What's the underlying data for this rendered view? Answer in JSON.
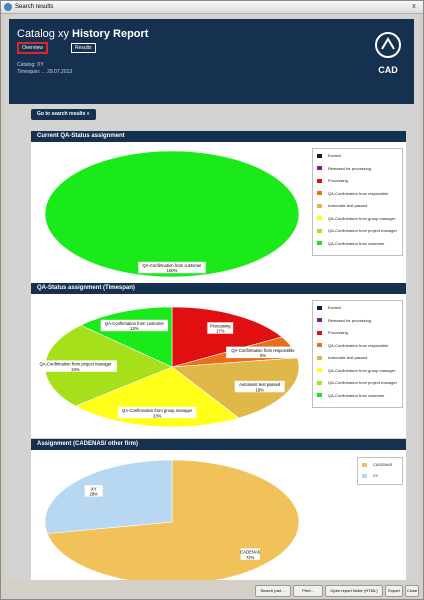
{
  "window": {
    "title": "Search results",
    "close": "x"
  },
  "header": {
    "title_light": "Catalog xy",
    "title_bold": "History Report",
    "tabs": {
      "overview": "Overview",
      "results": "Results"
    },
    "catalog": "Catalog: XY",
    "timespan": "Timespan: ... 29.07.2013"
  },
  "logo": {
    "text": "CAD"
  },
  "go_button": "Go to search results »",
  "legend_items": [
    {
      "label": "Eroded",
      "color": "#1a1a40"
    },
    {
      "label": "Released for processing",
      "color": "#7f1f7f"
    },
    {
      "label": "Processing",
      "color": "#e01010"
    },
    {
      "label": "QA-Confirmation from responsible",
      "color": "#e8701a"
    },
    {
      "label": "Automatic test passed",
      "color": "#e0b84a"
    },
    {
      "label": "QA-Confirmation from group manager",
      "color": "#ffff1a"
    },
    {
      "label": "QA-Confirmation from project manager",
      "color": "#a6e01a"
    },
    {
      "label": "QA-Confirmation from customer",
      "color": "#1aea1a"
    }
  ],
  "panels": {
    "current": {
      "title": "Current QA-Status assignment"
    },
    "timespan": {
      "title": "QA-Status assignment (Timespan)"
    },
    "firm": {
      "title": "Assignment (CADENAS/ other firm)"
    }
  },
  "firm_legend": [
    {
      "label": "CADENAS",
      "color": "#f2c25a"
    },
    {
      "label": "XY",
      "color": "#b8d8f2"
    }
  ],
  "chart_data": [
    {
      "type": "pie",
      "title": "Current QA-Status assignment",
      "slices": [
        {
          "label": "QA-Confirmation from customer",
          "value": 100,
          "display": "100%",
          "color": "#1aea1a"
        }
      ]
    },
    {
      "type": "pie",
      "title": "QA-Status assignment (Timespan)",
      "slices": [
        {
          "label": "Processing",
          "value": 17,
          "display": "17%",
          "color": "#e01010"
        },
        {
          "label": "QA-Confirmation from responsible",
          "value": 6,
          "display": "6%",
          "color": "#e8701a"
        },
        {
          "label": "Automatic test passed",
          "value": 19,
          "display": "19%",
          "color": "#e0b84a"
        },
        {
          "label": "QA-Confirmation from group manager",
          "value": 23,
          "display": "23%",
          "color": "#ffff1a"
        },
        {
          "label": "QA-Confirmation from project manager",
          "value": 24,
          "display": "24%",
          "color": "#a6e01a"
        },
        {
          "label": "QA-Confirmation from customer",
          "value": 13,
          "display": "13%",
          "color": "#1aea1a"
        }
      ]
    },
    {
      "type": "pie",
      "title": "Assignment (CADENAS/ other firm)",
      "slices": [
        {
          "label": "CADENAS",
          "value": 72,
          "display": "72%",
          "color": "#f2c25a"
        },
        {
          "label": "XY",
          "value": 28,
          "display": "28%",
          "color": "#b8d8f2"
        }
      ]
    }
  ],
  "buttons": {
    "search_part": "Search part ...",
    "print": "Print...",
    "open_report": "Open report folder (HTML)",
    "export": "Export",
    "close": "Close"
  }
}
